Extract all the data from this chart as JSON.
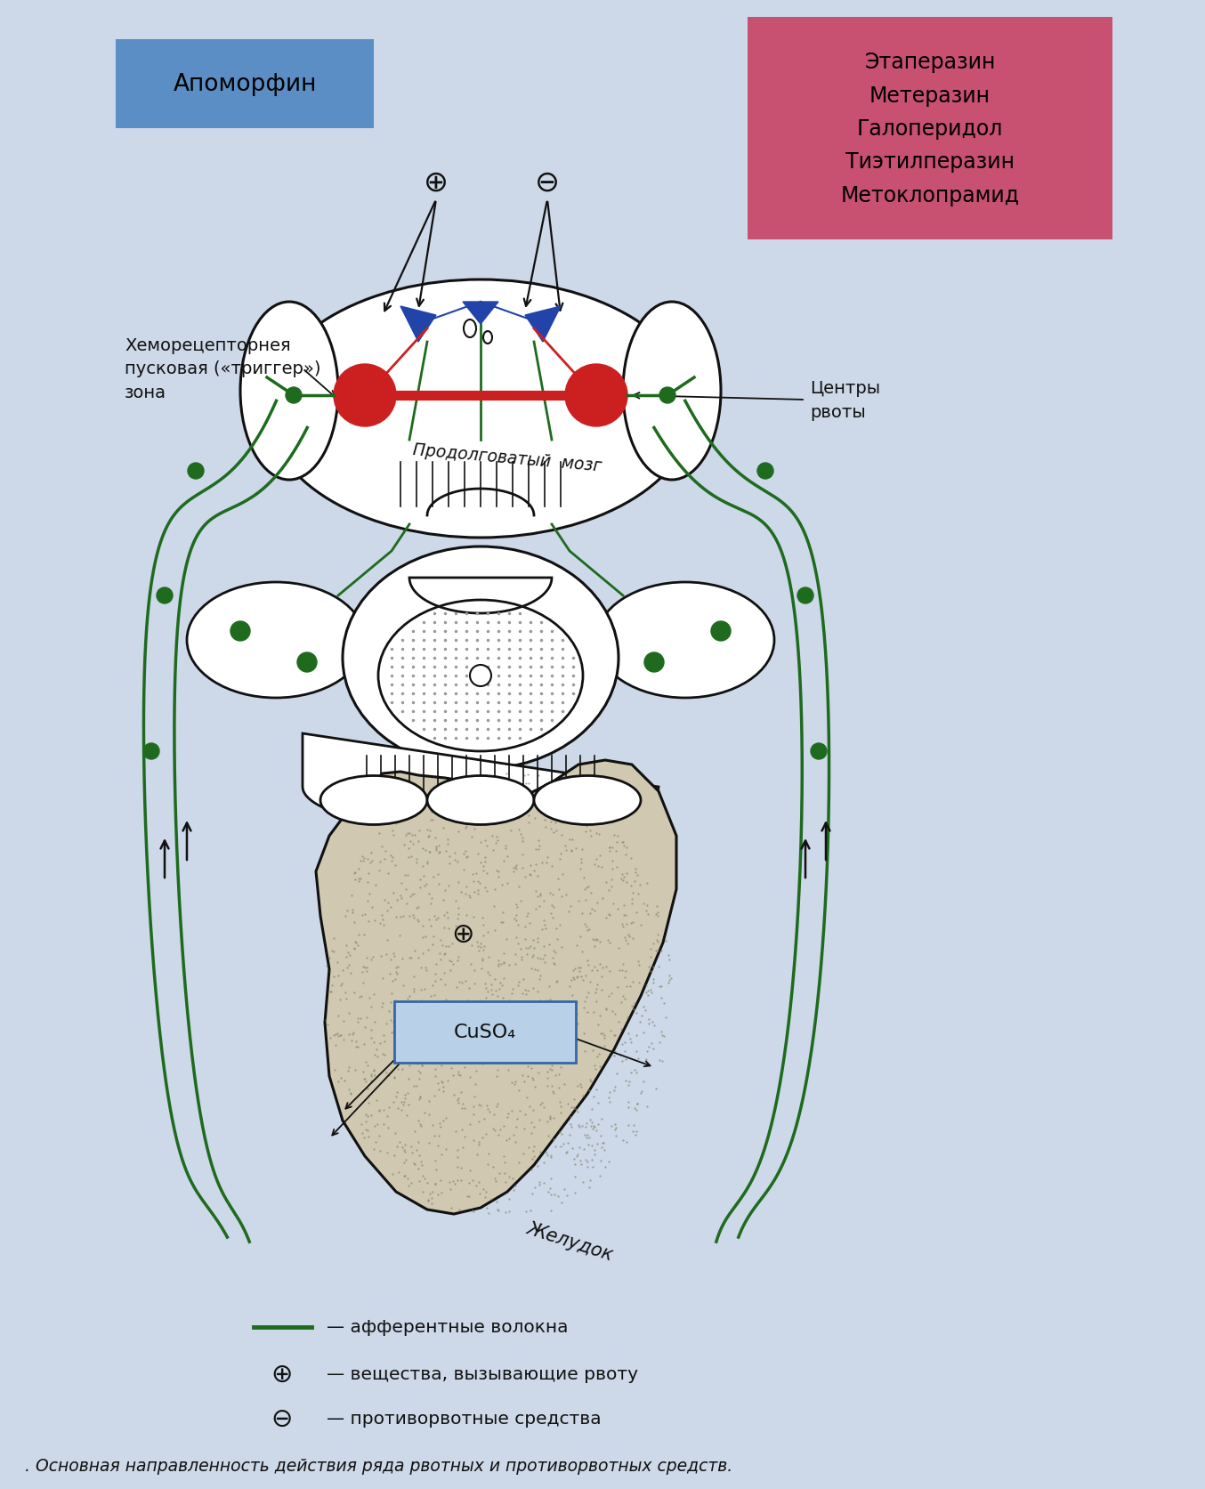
{
  "bg_color": "#cdd8e8",
  "title_text": ". Основная направленность действия ряда рвотных и противорвотных средств.",
  "apomorphin_label": "Апоморфин",
  "apomorphin_box_color": "#5b8ec4",
  "antiemetic_label": "Этаперазин\nМетеразин\nГалоперидол\nТиэтилперазин\nМетоклопрамид",
  "antiemetic_box_color": "#c85070",
  "chemoreceptor_label": "Хеморецепторнея\nпусковая («триггер»)\nзона",
  "vomit_center_label": "Центры\nрвоты",
  "medulla_label": "Продолговатый  мозг",
  "stomach_label": "Желудок",
  "cuso4_label": "CuSO₄",
  "legend_line": "— афферентные волокна",
  "legend_plus": "— вещества, вызывающие рвоту",
  "legend_minus": "— противорвотные средства",
  "green_color": "#1e6b1e",
  "red_color": "#cc2020",
  "blue_color": "#2244aa",
  "dark_color": "#111111",
  "cuso4_box_color": "#b8d0e8"
}
